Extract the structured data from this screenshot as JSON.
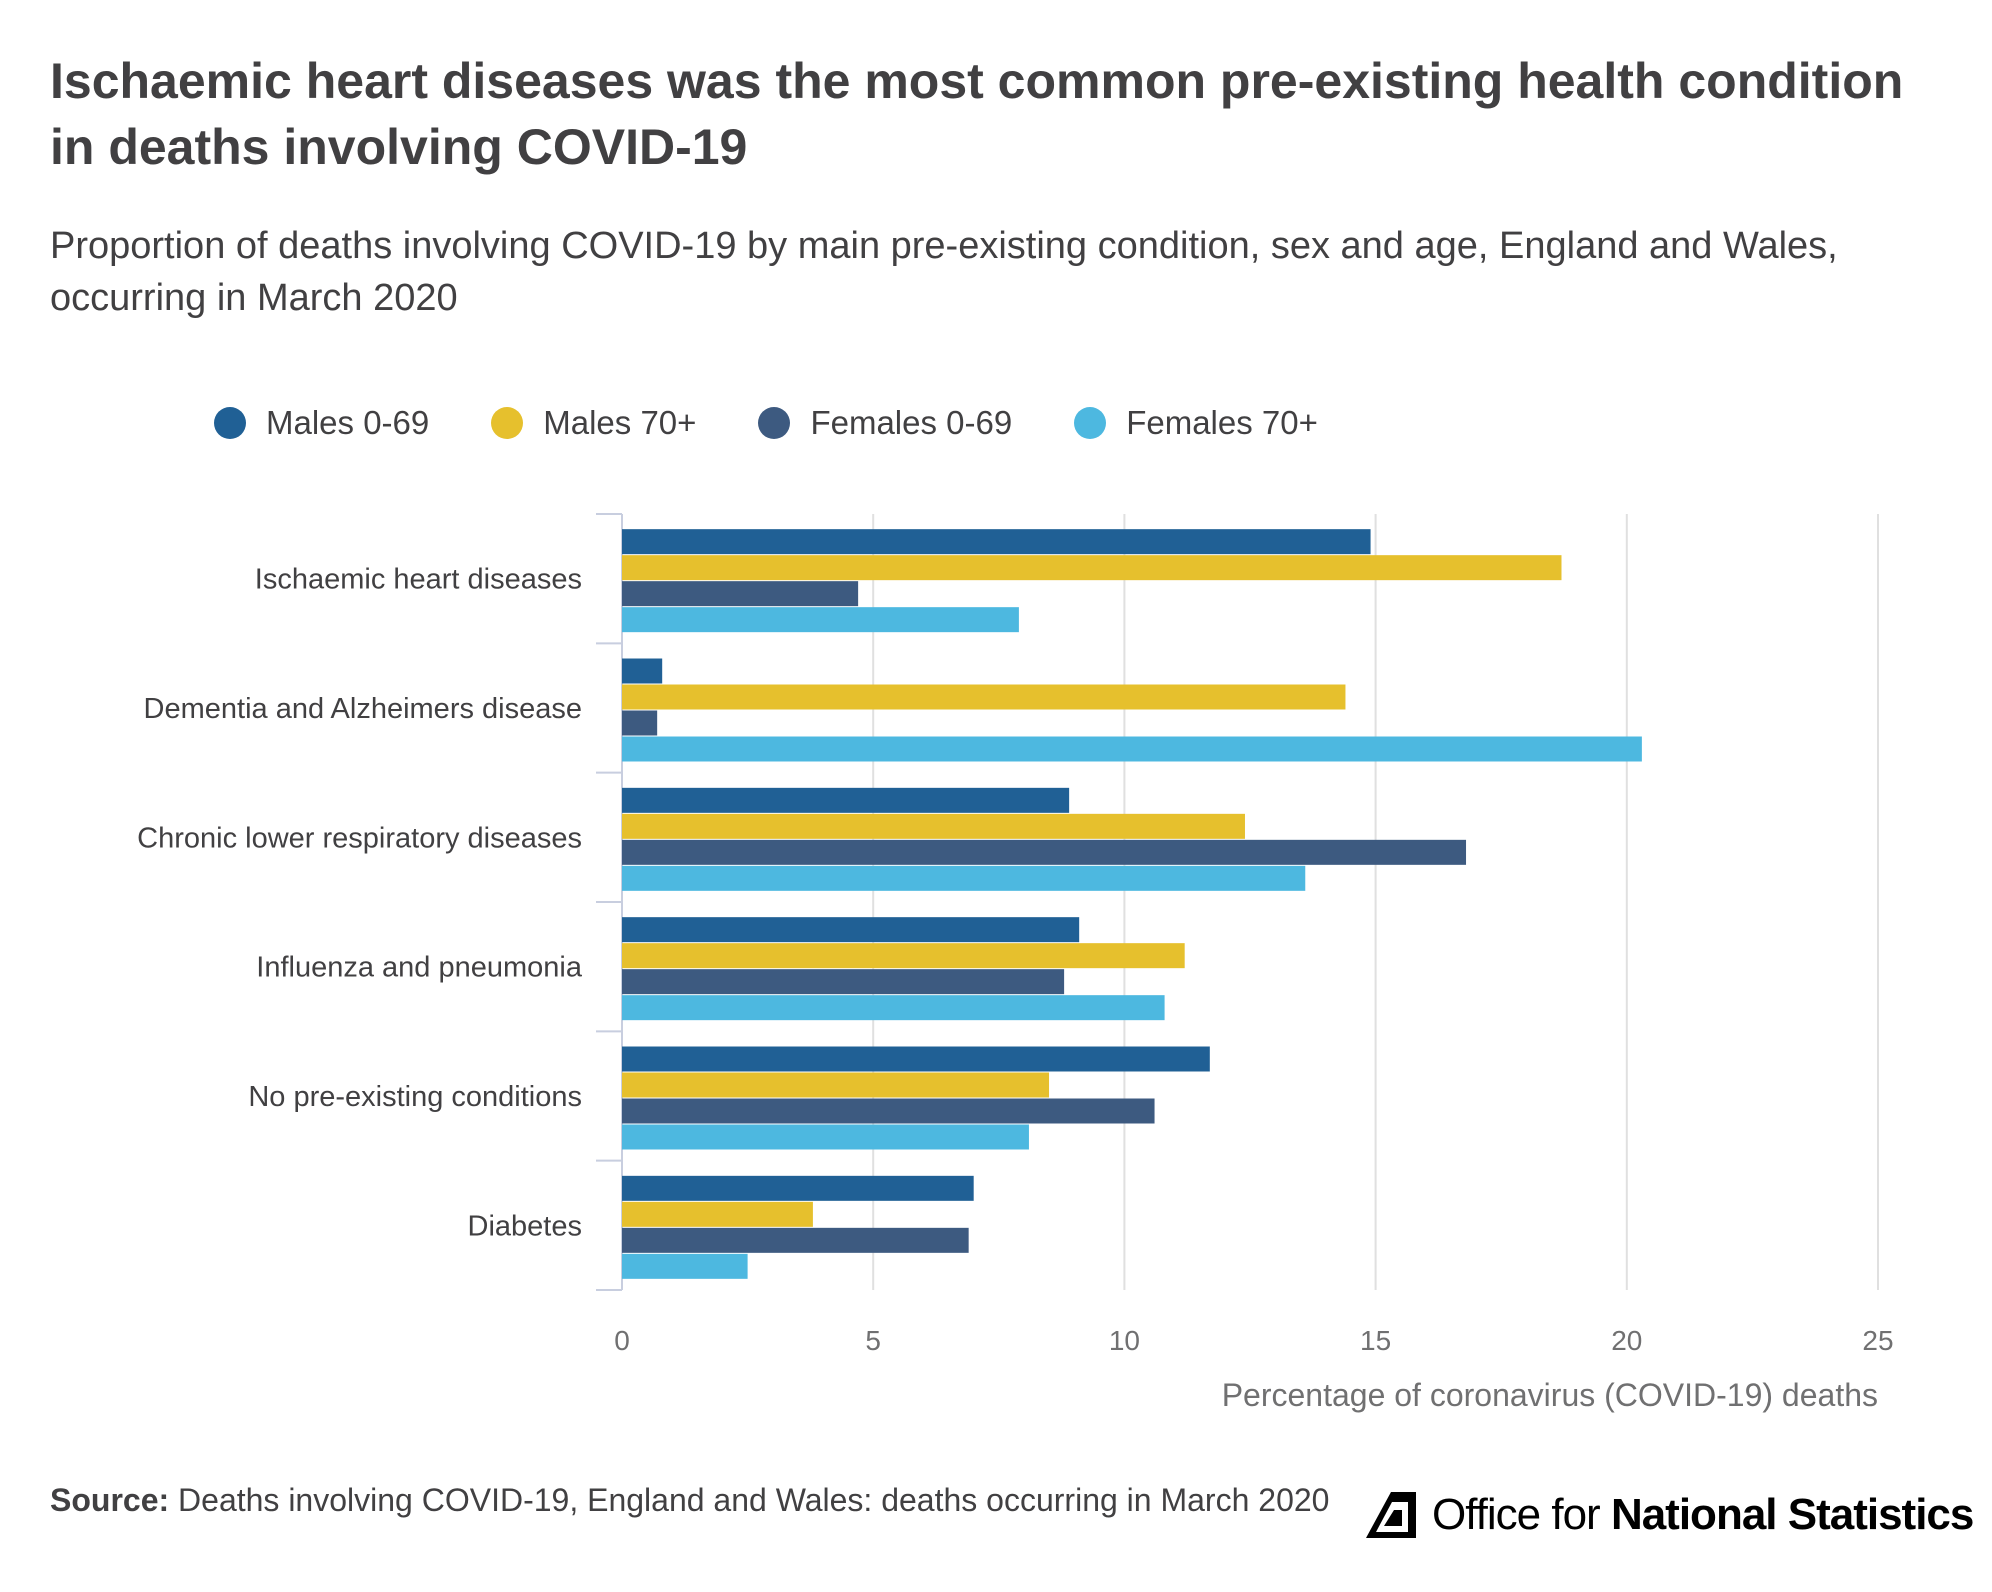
{
  "title": "Ischaemic heart diseases was the most common pre-existing health condition in deaths involving COVID-19",
  "subtitle": "Proportion of deaths involving COVID-19 by main pre-existing condition, sex and age, England and Wales, occurring in March 2020",
  "source": {
    "label": "Source:",
    "text": "Deaths involving COVID-19, England and Wales: deaths occurring in March 2020"
  },
  "logo": {
    "text_light": "Office for",
    "text_bold": "National Statistics"
  },
  "chart_data": {
    "type": "bar",
    "orientation": "horizontal",
    "categories": [
      "Ischaemic heart diseases",
      "Dementia and Alzheimers disease",
      "Chronic lower respiratory diseases",
      "Influenza and pneumonia",
      "No pre-existing conditions",
      "Diabetes"
    ],
    "series": [
      {
        "name": "Males 0-69",
        "color": "#206095",
        "values": [
          14.9,
          0.8,
          8.9,
          9.1,
          11.7,
          7.0
        ]
      },
      {
        "name": "Males 70+",
        "color": "#e6c02d",
        "values": [
          18.7,
          14.4,
          12.4,
          11.2,
          8.5,
          3.8
        ]
      },
      {
        "name": "Females 0-69",
        "color": "#3d5a80",
        "values": [
          4.7,
          0.7,
          16.8,
          8.8,
          10.6,
          6.9
        ]
      },
      {
        "name": "Females 70+",
        "color": "#4db8e0",
        "values": [
          7.9,
          20.3,
          13.6,
          10.8,
          8.1,
          2.5
        ]
      }
    ],
    "xlabel": "Percentage of coronavirus (COVID-19) deaths",
    "xlim": [
      0,
      25
    ],
    "xticks": [
      0,
      5,
      10,
      15,
      20,
      25
    ],
    "grid": true,
    "legend_position": "top-left"
  }
}
